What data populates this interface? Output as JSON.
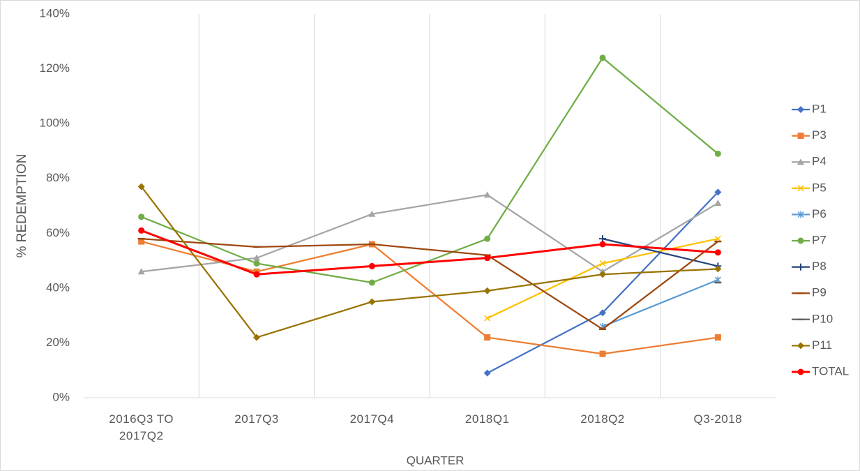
{
  "chart_data": {
    "type": "line",
    "xlabel": "QUARTER",
    "ylabel": "% REDEMPTION",
    "categories": [
      "2016Q3 TO 2017Q2",
      "2017Q3",
      "2017Q4",
      "2018Q1",
      "2018Q2",
      "Q3-2018"
    ],
    "ylim": [
      0,
      140
    ],
    "yticks": [
      {
        "value": 0,
        "label": "0%"
      },
      {
        "value": 20,
        "label": "20%"
      },
      {
        "value": 40,
        "label": "40%"
      },
      {
        "value": 60,
        "label": "60%"
      },
      {
        "value": 80,
        "label": "80%"
      },
      {
        "value": 100,
        "label": "100%"
      },
      {
        "value": 120,
        "label": "120%"
      },
      {
        "value": 140,
        "label": "140%"
      }
    ],
    "xgrid": true,
    "legend": "right",
    "series": [
      {
        "name": "P1",
        "color": "#4472c4",
        "marker": "diamond",
        "values": [
          null,
          null,
          null,
          9,
          31,
          75
        ]
      },
      {
        "name": "P3",
        "color": "#ed7d31",
        "marker": "square",
        "values": [
          57,
          46,
          56,
          22,
          16,
          22
        ]
      },
      {
        "name": "P4",
        "color": "#a5a5a5",
        "marker": "triangle",
        "values": [
          46,
          51,
          67,
          74,
          46,
          71
        ]
      },
      {
        "name": "P5",
        "color": "#ffc000",
        "marker": "x",
        "values": [
          null,
          null,
          null,
          29,
          49,
          58
        ]
      },
      {
        "name": "P6",
        "color": "#5b9bd5",
        "marker": "star",
        "values": [
          null,
          null,
          null,
          null,
          26,
          43
        ]
      },
      {
        "name": "P7",
        "color": "#70ad47",
        "marker": "circle",
        "values": [
          66,
          49,
          42,
          58,
          124,
          89
        ]
      },
      {
        "name": "P8",
        "color": "#264478",
        "marker": "plus",
        "values": [
          null,
          null,
          null,
          null,
          58,
          48
        ]
      },
      {
        "name": "P9",
        "color": "#9e480e",
        "marker": "dash",
        "values": [
          58,
          55,
          56,
          52,
          25,
          57
        ]
      },
      {
        "name": "P10",
        "color": "#636363",
        "marker": "dash",
        "values": [
          null,
          null,
          null,
          null,
          null,
          42
        ]
      },
      {
        "name": "P11",
        "color": "#997300",
        "marker": "diamond",
        "values": [
          77,
          22,
          35,
          39,
          45,
          47
        ]
      },
      {
        "name": "TOTAL",
        "color": "#ff0000",
        "marker": "circle",
        "values": [
          61,
          45,
          48,
          51,
          56,
          53
        ]
      }
    ]
  }
}
